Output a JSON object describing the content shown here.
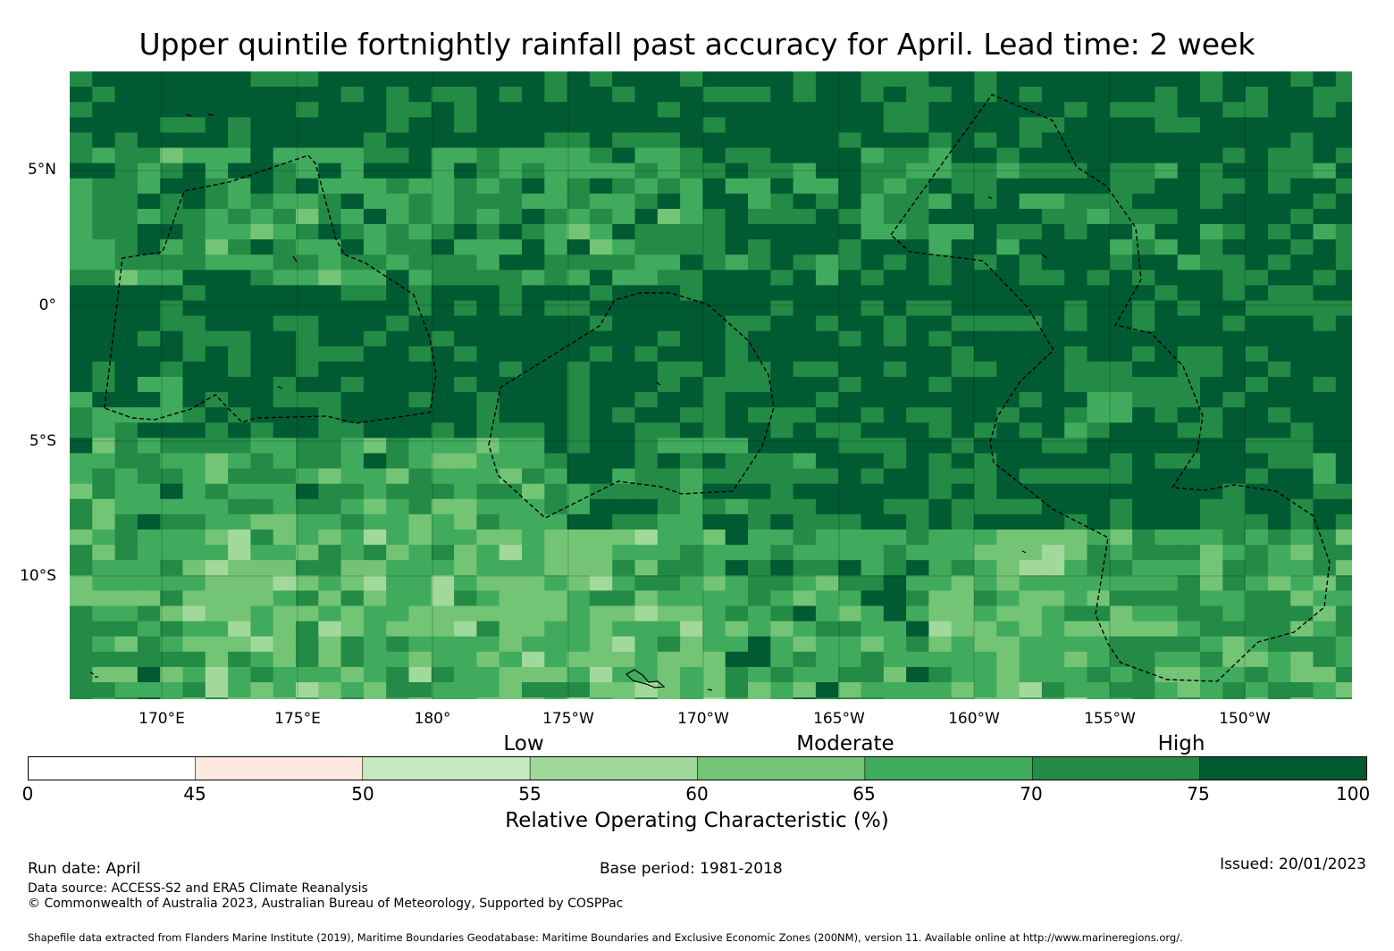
{
  "title": "Upper quintile fortnightly rainfall past accuracy for April. Lead time: 2 week",
  "lat_labels": [
    "5°N",
    "0°",
    "5°S",
    "10°S"
  ],
  "lon_labels": [
    "170°E",
    "175°E",
    "180°",
    "175°W",
    "170°W",
    "165°W",
    "160°W",
    "155°W",
    "150°W"
  ],
  "colorbar": {
    "band_labels": [
      "Low",
      "Moderate",
      "High"
    ],
    "ticks": [
      "0",
      "45",
      "50",
      "55",
      "60",
      "65",
      "70",
      "75",
      "100"
    ],
    "title": "Relative Operating Characteristic (%)",
    "classes": [
      {
        "from": 0,
        "to": 45,
        "color": "#ffffff"
      },
      {
        "from": 45,
        "to": 50,
        "color": "#fee9e0"
      },
      {
        "from": 50,
        "to": 55,
        "color": "#c7e9c0"
      },
      {
        "from": 55,
        "to": 60,
        "color": "#a1d99b"
      },
      {
        "from": 60,
        "to": 65,
        "color": "#74c476"
      },
      {
        "from": 65,
        "to": 70,
        "color": "#41ab5d"
      },
      {
        "from": 70,
        "to": 75,
        "color": "#238b45"
      },
      {
        "from": 75,
        "to": 100,
        "color": "#005a32"
      }
    ]
  },
  "footer": {
    "run_date": "Run date: April",
    "base_period": "Base period: 1981-2018",
    "issued": "Issued: 20/01/2023",
    "data_source": "Data source: ACCESS-S2 and ERA5 Climate Reanalysis",
    "copyright": "© Commonwealth of Australia 2023, Australian Bureau of Meteorology, Supported by COSPPac",
    "shapefile": "Shapefile data extracted from Flanders Marine Institute (2019), Maritime Boundaries Geodatabase: Maritime Boundaries and Exclusive Economic Zones (200NM), version 11. Available online at http://www.marineregions.org/."
  }
}
